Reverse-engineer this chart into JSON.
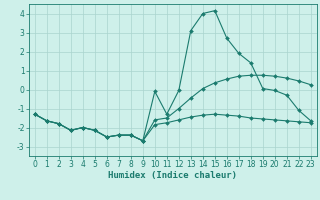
{
  "xlabel": "Humidex (Indice chaleur)",
  "x": [
    0,
    1,
    2,
    3,
    4,
    5,
    6,
    7,
    8,
    9,
    10,
    11,
    12,
    13,
    14,
    15,
    16,
    17,
    18,
    19,
    20,
    21,
    22,
    23
  ],
  "line1": [
    -1.3,
    -1.65,
    -1.8,
    -2.15,
    -2.0,
    -2.15,
    -2.5,
    -2.4,
    -2.4,
    -2.7,
    -0.1,
    -1.3,
    -0.05,
    3.1,
    4.0,
    4.15,
    2.7,
    1.9,
    1.4,
    0.05,
    -0.05,
    -0.3,
    -1.1,
    -1.65
  ],
  "line2": [
    -1.3,
    -1.65,
    -1.8,
    -2.15,
    -2.0,
    -2.15,
    -2.5,
    -2.4,
    -2.4,
    -2.7,
    -1.6,
    -1.5,
    -1.0,
    -0.45,
    0.05,
    0.35,
    0.55,
    0.7,
    0.75,
    0.75,
    0.7,
    0.6,
    0.45,
    0.25
  ],
  "line3": [
    -1.3,
    -1.65,
    -1.8,
    -2.15,
    -2.0,
    -2.15,
    -2.5,
    -2.4,
    -2.4,
    -2.7,
    -1.85,
    -1.75,
    -1.6,
    -1.45,
    -1.35,
    -1.3,
    -1.35,
    -1.4,
    -1.5,
    -1.55,
    -1.6,
    -1.65,
    -1.7,
    -1.75
  ],
  "line_color": "#1b7b6e",
  "bg_color": "#cef0ea",
  "grid_color": "#aad4ce",
  "ylim": [
    -3.5,
    4.5
  ],
  "xlim": [
    -0.5,
    23.5
  ],
  "yticks": [
    -3,
    -2,
    -1,
    0,
    1,
    2,
    3,
    4
  ],
  "xticks": [
    0,
    1,
    2,
    3,
    4,
    5,
    6,
    7,
    8,
    9,
    10,
    11,
    12,
    13,
    14,
    15,
    16,
    17,
    18,
    19,
    20,
    21,
    22,
    23
  ],
  "tick_fontsize": 5.5,
  "xlabel_fontsize": 6.5
}
